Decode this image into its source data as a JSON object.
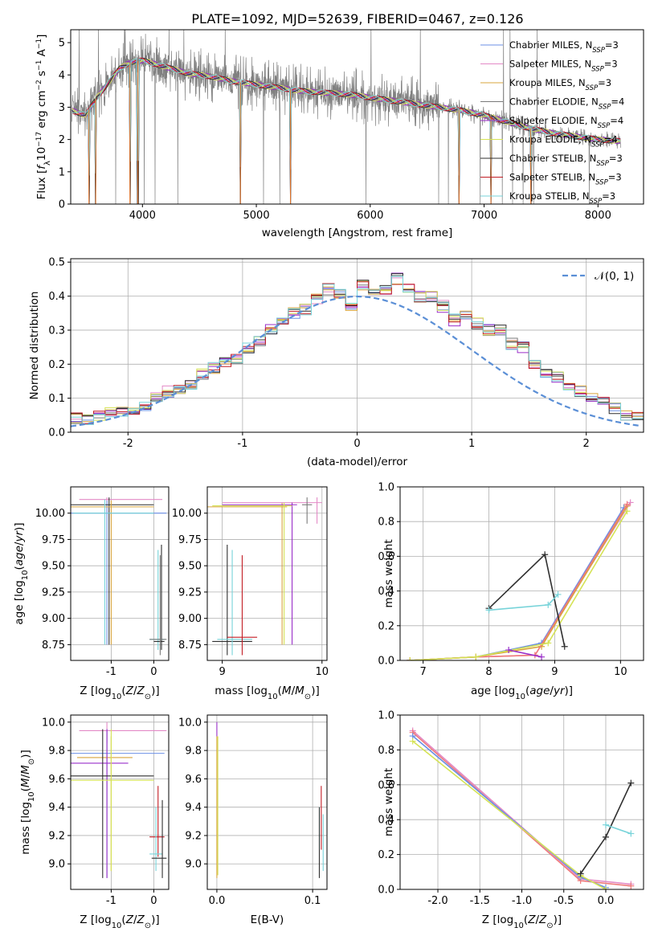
{
  "title": "PLATE=1092, MJD=52639, FIBERID=0467, z=0.126",
  "colors": {
    "Chabrier MILES": "#6b8fe6",
    "Salpeter MILES": "#e38ac6",
    "Kroupa MILES": "#d8a43c",
    "Chabrier ELODIE": "#7a7a7a",
    "Salpeter ELODIE": "#9a2fc9",
    "Kroupa ELODIE": "#d5e356",
    "Chabrier STELIB": "#2f2f2f",
    "Salpeter STELIB": "#c21d25",
    "Kroupa STELIB": "#77d3d9",
    "Salpeter": "#ef7b7b",
    "Gaussian": "#5b8fd6",
    "data": "#808080",
    "model": "#ef7a2a"
  },
  "spectrum_panel": {
    "xlabel": "wavelength [Angstrom, rest frame]",
    "ylabel": "Flux [f_λ10^-17 erg cm^-2 s^-1 A^-1]",
    "legend": [
      {
        "name": "Chabrier MILES",
        "label": "Chabrier MILES, N",
        "sub": "SSP",
        "eq": "=3"
      },
      {
        "name": "Salpeter MILES",
        "label": "Salpeter MILES, N",
        "sub": "SSP",
        "eq": "=3"
      },
      {
        "name": "Kroupa MILES",
        "label": "Kroupa MILES, N",
        "sub": "SSP",
        "eq": "=3"
      },
      {
        "name": "Chabrier ELODIE",
        "label": "Chabrier ELODIE, N",
        "sub": "SSP",
        "eq": "=4"
      },
      {
        "name": "Salpeter ELODIE",
        "label": "Salpeter ELODIE, N",
        "sub": "SSP",
        "eq": "=4"
      },
      {
        "name": "Kroupa ELODIE",
        "label": "Kroupa ELODIE, N",
        "sub": "SSP",
        "eq": "=4"
      },
      {
        "name": "Chabrier STELIB",
        "label": "Chabrier STELIB, N",
        "sub": "SSP",
        "eq": "=3"
      },
      {
        "name": "Salpeter STELIB",
        "label": "Salpeter STELIB, N",
        "sub": "SSP",
        "eq": "=3"
      },
      {
        "name": "Kroupa STELIB",
        "label": "Kroupa STELIB, N",
        "sub": "SSP",
        "eq": "=3"
      }
    ]
  },
  "chart_data": [
    {
      "id": "spectrum",
      "type": "line",
      "xlabel": "wavelength [Angstrom, rest frame]",
      "ylabel": "Flux [f_λ10^-17 erg cm^-2 s^-1 A^-1]",
      "xlim": [
        3370,
        8400
      ],
      "ylim": [
        0,
        5.4
      ],
      "xticks": [
        4000,
        5000,
        6000,
        7000,
        8000
      ],
      "yticks": [
        0,
        1,
        2,
        3,
        4,
        5
      ],
      "continuum": {
        "x": [
          3380,
          3500,
          3600,
          3700,
          3800,
          3900,
          4000,
          4200,
          4400,
          4600,
          4800,
          5000,
          5200,
          5400,
          5600,
          5800,
          6000,
          6200,
          6400,
          6600,
          6800,
          7000,
          7200,
          7400,
          7600,
          7800,
          8000,
          8200
        ],
        "y": [
          2.9,
          2.75,
          3.3,
          3.75,
          4.2,
          4.4,
          4.45,
          4.25,
          4.05,
          3.95,
          3.8,
          3.7,
          3.6,
          3.5,
          3.45,
          3.4,
          3.3,
          3.2,
          3.1,
          3.0,
          2.9,
          2.75,
          2.55,
          2.35,
          2.2,
          2.1,
          2.0,
          1.95
        ]
      },
      "absorption_lines": [
        3530,
        3590,
        3890,
        3960,
        4860,
        5300,
        6780,
        7060,
        7410
      ]
    },
    {
      "id": "residuals",
      "type": "line",
      "xlabel": "(data-model)/error",
      "ylabel": "Normed distribution",
      "xlim": [
        -2.5,
        2.5
      ],
      "ylim": [
        0,
        0.51
      ],
      "xticks": [
        -2,
        -1,
        0,
        1,
        2
      ],
      "yticks": [
        0.0,
        0.1,
        0.2,
        0.3,
        0.4,
        0.5
      ],
      "bin_width": 0.1,
      "histogram_profile": [
        0.03,
        0.03,
        0.04,
        0.04,
        0.05,
        0.06,
        0.06,
        0.07,
        0.08,
        0.1,
        0.12,
        0.13,
        0.14,
        0.17,
        0.19,
        0.21,
        0.22,
        0.25,
        0.27,
        0.3,
        0.33,
        0.35,
        0.36,
        0.39,
        0.42,
        0.41,
        0.37,
        0.43,
        0.42,
        0.42,
        0.45,
        0.42,
        0.4,
        0.4,
        0.37,
        0.33,
        0.34,
        0.32,
        0.3,
        0.3,
        0.26,
        0.25,
        0.2,
        0.17,
        0.16,
        0.14,
        0.12,
        0.1,
        0.09,
        0.07,
        0.05,
        0.05,
        0.05,
        0.04
      ],
      "series": [
        {
          "name": "𝒩(0, 1)",
          "type": "gaussian",
          "mean": 0,
          "sigma": 1
        }
      ]
    },
    {
      "id": "age-vs-Z",
      "type": "scatter",
      "xlabel": "Z [log10(Z/Z⊙)]",
      "ylabel": "age [log10(age/yr)]",
      "xlim": [
        -1.95,
        0.35
      ],
      "ylim": [
        8.6,
        10.25
      ],
      "xticks": [
        -1,
        0
      ],
      "yticks": [
        8.75,
        9.0,
        9.25,
        9.5,
        9.75,
        10.0
      ],
      "crosses": [
        {
          "series": "Salpeter MILES",
          "x": -1.1,
          "y": 10.13,
          "hx": [
            -1.75,
            0.2
          ],
          "vy": [
            10.0,
            10.15
          ]
        },
        {
          "series": "Chabrier MILES",
          "x": -1.1,
          "y": 10.0,
          "hx": [
            -1.95,
            0.3
          ],
          "vy": [
            8.75,
            10.12
          ]
        },
        {
          "series": "Chabrier STELIB",
          "x": -1.05,
          "y": 10.08,
          "hx": [
            -1.95,
            0.0
          ],
          "vy": [
            8.75,
            10.15
          ]
        },
        {
          "series": "Kroupa MILES",
          "x": -1.0,
          "y": 10.06,
          "hx": [
            -1.95,
            0.0
          ],
          "vy": [
            8.75,
            10.12
          ]
        },
        {
          "series": "Kroupa STELIB",
          "x": -1.15,
          "y": 10.0,
          "hx": [
            -1.9,
            0.0
          ],
          "vy": [
            8.75,
            10.13
          ]
        },
        {
          "series": "Kroupa STELIB",
          "x": 0.1,
          "y": 8.8,
          "hx": [
            -0.1,
            0.25
          ],
          "vy": [
            8.7,
            9.65
          ]
        },
        {
          "series": "Chabrier STELIB",
          "x": 0.18,
          "y": 8.78,
          "hx": [
            0.0,
            0.25
          ],
          "vy": [
            8.7,
            9.7
          ]
        },
        {
          "series": "Chabrier ELODIE",
          "x": 0.15,
          "y": 8.8,
          "hx": [
            -0.1,
            0.3
          ],
          "vy": [
            8.65,
            9.6
          ]
        }
      ]
    },
    {
      "id": "age-vs-mass",
      "type": "scatter",
      "xlabel": "mass [log10(M/M⊙)]",
      "ylabel": "",
      "xlim": [
        8.85,
        10.05
      ],
      "ylim": [
        8.6,
        10.25
      ],
      "xticks": [
        9,
        10
      ],
      "yticks": [
        8.75,
        9.0,
        9.25,
        9.5,
        9.75,
        10.0
      ],
      "crosses": [
        {
          "series": "Kroupa MILES",
          "x": 9.6,
          "y": 10.06,
          "hx": [
            8.85,
            9.65
          ],
          "vy": [
            8.75,
            10.1
          ]
        },
        {
          "series": "Salpeter MILES",
          "x": 9.95,
          "y": 10.1,
          "hx": [
            9.0,
            10.0
          ],
          "vy": [
            9.9,
            10.15
          ]
        },
        {
          "series": "Salpeter ELODIE",
          "x": 9.7,
          "y": 10.08,
          "hx": [
            9.0,
            9.75
          ],
          "vy": [
            8.75,
            10.1
          ]
        },
        {
          "series": "Kroupa ELODIE",
          "x": 9.62,
          "y": 10.07,
          "hx": [
            8.9,
            9.7
          ],
          "vy": [
            8.75,
            10.1
          ]
        },
        {
          "series": "Chabrier STELIB",
          "x": 9.05,
          "y": 8.78,
          "hx": [
            8.9,
            9.3
          ],
          "vy": [
            8.65,
            9.7
          ]
        },
        {
          "series": "Kroupa STELIB",
          "x": 9.1,
          "y": 8.8,
          "hx": [
            8.95,
            9.3
          ],
          "vy": [
            8.65,
            9.65
          ]
        },
        {
          "series": "Salpeter STELIB",
          "x": 9.2,
          "y": 8.82,
          "hx": [
            9.05,
            9.35
          ],
          "vy": [
            8.65,
            9.6
          ]
        },
        {
          "series": "Chabrier ELODIE",
          "x": 9.85,
          "y": 10.08,
          "hx": [
            9.8,
            9.9
          ],
          "vy": [
            9.9,
            10.15
          ]
        }
      ]
    },
    {
      "id": "massweight-vs-age",
      "type": "line",
      "xlabel": "age [log10(age/yr)]",
      "ylabel": "mass weight",
      "xlim": [
        6.65,
        10.35
      ],
      "ylim": [
        0.0,
        1.0
      ],
      "xticks": [
        7,
        8,
        9,
        10
      ],
      "yticks": [
        0.0,
        0.2,
        0.4,
        0.6,
        0.8,
        1.0
      ],
      "series": [
        {
          "name": "Chabrier MILES",
          "x": [
            6.8,
            7.8,
            8.8,
            10.05
          ],
          "y": [
            0.0,
            0.02,
            0.1,
            0.88
          ]
        },
        {
          "name": "Salpeter MILES",
          "x": [
            6.8,
            7.8,
            8.7,
            10.15
          ],
          "y": [
            0.0,
            0.02,
            0.03,
            0.91
          ]
        },
        {
          "name": "Kroupa MILES",
          "x": [
            6.8,
            7.8,
            8.8,
            10.1
          ],
          "y": [
            0.0,
            0.02,
            0.08,
            0.89
          ]
        },
        {
          "name": "Salpeter",
          "x": [
            6.8,
            7.8,
            8.7,
            10.1
          ],
          "y": [
            0.0,
            0.02,
            0.03,
            0.9
          ]
        },
        {
          "name": "Kroupa ELODIE",
          "x": [
            6.8,
            7.8,
            8.9,
            10.1
          ],
          "y": [
            0.0,
            0.02,
            0.1,
            0.86
          ]
        },
        {
          "name": "Chabrier STELIB",
          "x": [
            8.0,
            8.85,
            9.15
          ],
          "y": [
            0.3,
            0.61,
            0.08
          ]
        },
        {
          "name": "Kroupa STELIB",
          "x": [
            8.0,
            8.9,
            9.05
          ],
          "y": [
            0.29,
            0.32,
            0.38
          ]
        },
        {
          "name": "Salpeter ELODIE",
          "x": [
            8.3,
            8.8
          ],
          "y": [
            0.06,
            0.02
          ]
        }
      ]
    },
    {
      "id": "mass-vs-Z",
      "type": "scatter",
      "xlabel": "Z [log10(Z/Z⊙)]",
      "ylabel": "mass [log10(M/M⊙)]",
      "xlim": [
        -1.95,
        0.35
      ],
      "ylim": [
        8.82,
        10.05
      ],
      "xticks": [
        -1,
        0
      ],
      "yticks": [
        9.0,
        9.2,
        9.4,
        9.6,
        9.8,
        10.0
      ],
      "crosses": [
        {
          "series": "Salpeter MILES",
          "x": -1.1,
          "y": 9.94,
          "hx": [
            -1.75,
            0.3
          ],
          "vy": [
            9.85,
            10.0
          ]
        },
        {
          "series": "Chabrier MILES",
          "x": -1.1,
          "y": 9.78,
          "hx": [
            -1.95,
            0.25
          ],
          "vy": [
            8.9,
            9.95
          ]
        },
        {
          "series": "Kroupa MILES",
          "x": -1.0,
          "y": 9.75,
          "hx": [
            -1.8,
            -0.5
          ],
          "vy": [
            8.95,
            9.9
          ]
        },
        {
          "series": "Salpeter ELODIE",
          "x": -1.1,
          "y": 9.71,
          "hx": [
            -1.95,
            -0.6
          ],
          "vy": [
            8.9,
            9.95
          ]
        },
        {
          "series": "Chabrier STELIB",
          "x": -1.2,
          "y": 9.62,
          "hx": [
            -1.95,
            0.0
          ],
          "vy": [
            8.9,
            9.95
          ]
        },
        {
          "series": "Kroupa ELODIE",
          "x": -1.0,
          "y": 9.59,
          "hx": [
            -1.95,
            0.0
          ],
          "vy": [
            8.95,
            9.95
          ]
        },
        {
          "series": "Salpeter STELIB",
          "x": 0.1,
          "y": 9.19,
          "hx": [
            -0.1,
            0.25
          ],
          "vy": [
            9.05,
            9.55
          ]
        },
        {
          "series": "Kroupa STELIB",
          "x": 0.05,
          "y": 9.07,
          "hx": [
            -0.1,
            0.2
          ],
          "vy": [
            8.95,
            9.4
          ]
        },
        {
          "series": "Chabrier STELIB",
          "x": 0.2,
          "y": 9.04,
          "hx": [
            -0.05,
            0.3
          ],
          "vy": [
            8.9,
            9.45
          ]
        }
      ]
    },
    {
      "id": "mass-vs-EBV",
      "type": "scatter",
      "xlabel": "E(B-V)",
      "ylabel": "",
      "xlim": [
        -0.01,
        0.115
      ],
      "ylim": [
        8.82,
        10.05
      ],
      "xticks": [
        0.0,
        0.1
      ],
      "yticks": [
        9.0,
        9.2,
        9.4,
        9.6,
        9.8,
        10.0
      ],
      "crosses": [
        {
          "series": "Salpeter ELODIE",
          "x": 0.0,
          "y": 9.95,
          "hx": [
            0.0,
            0.0
          ],
          "vy": [
            9.9,
            10.0
          ]
        },
        {
          "series": "Kroupa MILES",
          "x": 0.0,
          "y": 9.6,
          "hx": [
            0.0,
            0.0
          ],
          "vy": [
            8.9,
            9.9
          ]
        },
        {
          "series": "Kroupa ELODIE",
          "x": 0.001,
          "y": 9.55,
          "hx": [
            0.0,
            0.0
          ],
          "vy": [
            8.92,
            9.9
          ]
        },
        {
          "series": "Salpeter STELIB",
          "x": 0.109,
          "y": 9.3,
          "hx": [
            0.109,
            0.109
          ],
          "vy": [
            9.1,
            9.55
          ]
        },
        {
          "series": "Chabrier STELIB",
          "x": 0.107,
          "y": 9.2,
          "hx": [
            0.107,
            0.107
          ],
          "vy": [
            8.9,
            9.4
          ]
        },
        {
          "series": "Kroupa STELIB",
          "x": 0.111,
          "y": 9.15,
          "hx": [
            0.111,
            0.111
          ],
          "vy": [
            8.95,
            9.35
          ]
        }
      ]
    },
    {
      "id": "massweight-vs-Z",
      "type": "line",
      "xlabel": "Z [log10(Z/Z⊙)]",
      "ylabel": "mass weight",
      "xlim": [
        -2.45,
        0.45
      ],
      "ylim": [
        0.0,
        1.0
      ],
      "xticks": [
        -2.0,
        -1.5,
        -1.0,
        -0.5,
        0.0
      ],
      "yticks": [
        0.0,
        0.2,
        0.4,
        0.6,
        0.8,
        1.0
      ],
      "series": [
        {
          "name": "Salpeter MILES",
          "x": [
            -2.3,
            -0.3,
            0.3
          ],
          "y": [
            0.91,
            0.06,
            0.03
          ]
        },
        {
          "name": "Salpeter",
          "x": [
            -2.3,
            -0.3,
            0.3
          ],
          "y": [
            0.9,
            0.05,
            0.02
          ]
        },
        {
          "name": "Chabrier MILES",
          "x": [
            -2.3,
            -0.3,
            0.0
          ],
          "y": [
            0.88,
            0.07,
            0.01
          ]
        },
        {
          "name": "Kroupa ELODIE",
          "x": [
            -2.3,
            -0.3,
            0.0
          ],
          "y": [
            0.85,
            0.08,
            0.0
          ]
        },
        {
          "name": "Chabrier STELIB",
          "x": [
            -0.3,
            0.0,
            0.3
          ],
          "y": [
            0.09,
            0.3,
            0.61
          ]
        },
        {
          "name": "Kroupa STELIB",
          "x": [
            0.0,
            0.3
          ],
          "y": [
            0.37,
            0.32
          ]
        }
      ]
    }
  ]
}
